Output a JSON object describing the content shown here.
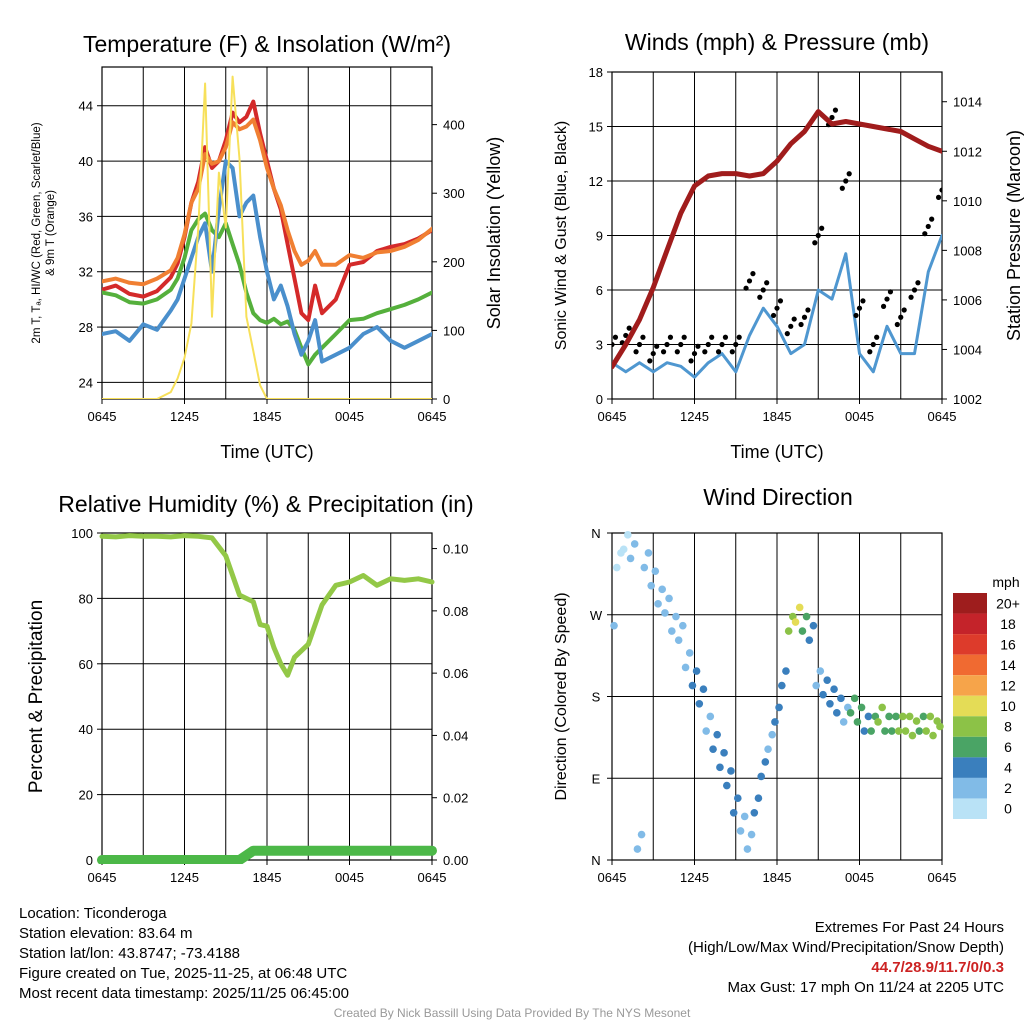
{
  "colors": {
    "temp": "#d42a2a",
    "dewpoint": "#55b03c",
    "hiwc": "#4a8fcc",
    "temp9m": "#f07f32",
    "insolation": "#f7e05a",
    "wind": "#4f97d0",
    "gust": "#000000",
    "pressure": "#a01c1c",
    "rh": "#93c847",
    "precip": "#4cb848"
  },
  "chart_data": [
    {
      "type": "line",
      "id": "temperature",
      "title": "Temperature (F) & Insolation (W/m²)",
      "xlabel": "Time (UTC)",
      "ylabel_lines": [
        "2m T, Tₐ, HI/WC (Red, Green, Scarlet/Blue)",
        "& 9m T (Orange)"
      ],
      "y2label": "Solar Insolation (Yellow)",
      "xticks": [
        "0645",
        "1245",
        "1845",
        "0045",
        "0645"
      ],
      "ylim": [
        22.8,
        46.8
      ],
      "yticks": [
        24,
        28,
        32,
        36,
        40,
        44
      ],
      "y2lim": [
        0,
        484
      ],
      "y2ticks": [
        0,
        100,
        200,
        300,
        400
      ],
      "hours": [
        0,
        1,
        2,
        3,
        4,
        5,
        5.5,
        6,
        6.5,
        7,
        7.5,
        8,
        8.5,
        9,
        9.5,
        10,
        10.5,
        11,
        11.5,
        12,
        12.5,
        13,
        13.5,
        14,
        14.5,
        15,
        15.5,
        16,
        17,
        18,
        19,
        20,
        21,
        22,
        23,
        24
      ],
      "series": [
        {
          "name": "2m Temperature",
          "color_key": "temp",
          "values": [
            30.7,
            31.0,
            30.4,
            30.2,
            30.6,
            31.6,
            32.6,
            34.5,
            37.0,
            38.5,
            41.0,
            39.5,
            40.0,
            41.5,
            43.5,
            42.8,
            43.2,
            44.3,
            42.0,
            40.0,
            38.0,
            36.5,
            34.0,
            31.5,
            29.0,
            28.5,
            31.0,
            29.0,
            30.0,
            32.5,
            32.7,
            33.5,
            33.8,
            34.0,
            34.4,
            35.0
          ]
        },
        {
          "name": "9m Temperature",
          "color_key": "temp9m",
          "values": [
            31.3,
            31.5,
            31.2,
            31.1,
            31.5,
            32.1,
            33.0,
            34.7,
            37.0,
            38.0,
            40.5,
            39.8,
            40.0,
            41.0,
            42.8,
            42.3,
            42.5,
            43.0,
            41.5,
            39.5,
            38.0,
            36.8,
            35.0,
            33.5,
            32.5,
            32.8,
            33.5,
            32.5,
            32.5,
            33.2,
            33.0,
            33.4,
            33.5,
            33.8,
            34.3,
            35.1
          ]
        },
        {
          "name": "2m Dewpoint",
          "color_key": "dewpoint",
          "values": [
            30.5,
            30.3,
            29.8,
            29.7,
            30.0,
            30.7,
            31.5,
            33.0,
            35.0,
            35.8,
            36.2,
            35.0,
            34.5,
            35.5,
            34.0,
            32.5,
            30.5,
            29.0,
            28.5,
            28.3,
            28.6,
            28.2,
            28.4,
            27.8,
            26.5,
            25.3,
            26.0,
            26.5,
            27.5,
            28.5,
            28.6,
            29.0,
            29.3,
            29.6,
            30.0,
            30.5
          ]
        },
        {
          "name": "Heat Index / Wind Chill",
          "color_key": "hiwc",
          "values": [
            27.5,
            27.7,
            27.0,
            28.2,
            27.8,
            29.2,
            30.0,
            31.5,
            33.0,
            34.5,
            35.5,
            32.0,
            36.5,
            40.0,
            39.5,
            36.0,
            37.0,
            37.5,
            34.5,
            32.0,
            30.0,
            31.0,
            29.5,
            27.5,
            26.0,
            27.0,
            28.5,
            25.5,
            26.0,
            26.5,
            27.5,
            28.0,
            27.0,
            26.5,
            27.0,
            27.5
          ]
        },
        {
          "name": "Solar Insolation",
          "color_key": "insolation",
          "axis": "y2",
          "values": [
            0,
            0,
            0,
            0,
            0,
            10,
            30,
            60,
            110,
            250,
            460,
            120,
            330,
            250,
            470,
            350,
            120,
            70,
            20,
            0,
            0,
            0,
            0,
            0,
            0,
            0,
            0,
            0,
            0,
            0,
            0,
            0,
            0,
            0,
            0,
            0
          ]
        }
      ]
    },
    {
      "type": "line",
      "id": "winds",
      "title": "Winds (mph) & Pressure (mb)",
      "xlabel": "Time (UTC)",
      "ylabel": "Sonic Wind & Gust (Blue, Black)",
      "y2label": "Station Pressure (Maroon)",
      "xticks": [
        "0645",
        "1245",
        "1845",
        "0045",
        "0645"
      ],
      "ylim": [
        0,
        18
      ],
      "yticks": [
        0,
        3,
        6,
        9,
        12,
        15,
        18
      ],
      "y2lim": [
        1002,
        1015.2
      ],
      "y2ticks": [
        1002,
        1004,
        1006,
        1008,
        1010,
        1012,
        1014
      ],
      "hours": [
        0,
        1,
        2,
        3,
        4,
        5,
        6,
        7,
        8,
        9,
        10,
        11,
        12,
        13,
        14,
        15,
        16,
        17,
        18,
        19,
        20,
        21,
        22,
        23,
        24
      ],
      "series": [
        {
          "name": "Sonic Wind",
          "color_key": "wind",
          "values": [
            2.0,
            1.5,
            2.0,
            1.5,
            2.0,
            1.8,
            1.2,
            2.0,
            2.5,
            1.5,
            3.5,
            5.0,
            4.0,
            2.5,
            3.0,
            6.0,
            5.5,
            8.0,
            2.5,
            1.5,
            4.0,
            2.5,
            2.5,
            7.0,
            9.0
          ]
        },
        {
          "name": "Gust",
          "color_key": "gust",
          "style": "points",
          "values": [
            3.0,
            3.5,
            3.0,
            2.5,
            3.0,
            3.0,
            2.5,
            3.0,
            3.0,
            3.0,
            6.5,
            6.0,
            5.0,
            4.0,
            4.5,
            9.0,
            15.5,
            12.0,
            5.0,
            3.0,
            5.5,
            4.5,
            6.0,
            9.5,
            11.5
          ]
        },
        {
          "name": "Station Pressure",
          "color_key": "pressure",
          "axis": "y2",
          "values": [
            1003.3,
            1004.2,
            1005.2,
            1006.5,
            1008.0,
            1009.5,
            1010.6,
            1011.0,
            1011.1,
            1011.1,
            1011.0,
            1011.1,
            1011.6,
            1012.3,
            1012.8,
            1013.6,
            1013.1,
            1013.2,
            1013.1,
            1013.0,
            1012.9,
            1012.8,
            1012.5,
            1012.2,
            1012.0
          ]
        }
      ]
    },
    {
      "type": "line",
      "id": "humidity",
      "title": "Relative Humidity (%) & Precipitation (in)",
      "ylabel": "Percent & Precipitation",
      "xticks": [
        "0645",
        "1245",
        "1845",
        "0045",
        "0645"
      ],
      "ylim": [
        0,
        100
      ],
      "yticks": [
        0,
        20,
        40,
        60,
        80,
        100
      ],
      "y2lim": [
        0,
        0.105
      ],
      "y2ticks": [
        "0.00",
        "0.02",
        "0.04",
        "0.06",
        "0.08",
        "0.10"
      ],
      "hours": [
        0,
        1,
        2,
        3,
        4,
        5,
        6,
        7,
        8,
        9,
        10,
        11,
        11.5,
        12,
        12.5,
        13,
        13.5,
        14,
        15,
        16,
        17,
        18,
        19,
        20,
        21,
        22,
        23,
        24
      ],
      "series": [
        {
          "name": "Relative Humidity",
          "color_key": "rh",
          "values": [
            99.0,
            98.8,
            99.2,
            99.0,
            99.0,
            98.8,
            99.2,
            99.0,
            98.5,
            93.0,
            81.0,
            79.0,
            72.0,
            71.5,
            65.0,
            60.0,
            56.5,
            62.0,
            66.0,
            78.0,
            84.0,
            85.0,
            87.0,
            84.0,
            86.0,
            85.5,
            86.0,
            85.0
          ]
        },
        {
          "name": "Precipitation",
          "color_key": "precip",
          "axis": "y2",
          "values": [
            0,
            0,
            0,
            0,
            0,
            0,
            0,
            0,
            0,
            0,
            0,
            0.003,
            0.003,
            0.003,
            0.003,
            0.003,
            0.003,
            0.003,
            0.003,
            0.003,
            0.003,
            0.003,
            0.003,
            0.003,
            0.003,
            0.003,
            0.003,
            0.003
          ]
        }
      ]
    },
    {
      "type": "scatter",
      "id": "direction",
      "title": "Wind Direction",
      "ylabel": "Direction (Colored By Speed)",
      "xticks": [
        "0645",
        "1245",
        "1845",
        "0045",
        "0645"
      ],
      "yticks": [
        "N",
        "E",
        "S",
        "W",
        "N"
      ],
      "ylim": [
        0,
        360
      ],
      "hours": [
        0,
        0.5,
        1,
        1.5,
        2,
        2.5,
        3,
        3.5,
        4,
        4.5,
        5,
        5.5,
        6,
        6.5,
        7,
        7.5,
        8,
        8.5,
        9,
        9.5,
        10,
        10.5,
        11,
        11.5,
        12,
        12.5,
        13,
        13.5,
        14,
        14.5,
        15,
        15.5,
        16,
        16.5,
        17,
        17.5,
        18,
        18.5,
        19,
        19.5,
        20,
        20.5,
        21,
        21.5,
        22,
        22.5,
        23,
        23.5,
        24
      ],
      "direction_deg": [
        250,
        330,
        350,
        340,
        20,
        330,
        310,
        290,
        280,
        260,
        250,
        220,
        200,
        180,
        150,
        130,
        110,
        90,
        60,
        40,
        20,
        60,
        100,
        130,
        160,
        200,
        260,
        270,
        260,
        250,
        200,
        190,
        180,
        170,
        160,
        170,
        160,
        150,
        150,
        160,
        150,
        150,
        150,
        150,
        145,
        150,
        150,
        145,
        155
      ],
      "speed_mph": [
        2,
        1,
        1,
        2,
        3,
        2,
        3,
        2,
        3,
        2,
        2,
        3,
        4,
        4,
        3,
        4,
        4,
        5,
        4,
        3,
        3,
        4,
        4,
        3,
        4,
        5,
        9,
        11,
        7,
        5,
        3,
        4,
        5,
        4,
        3,
        6,
        6,
        5,
        7,
        8,
        7,
        6,
        8,
        9,
        8,
        7,
        9,
        8,
        8
      ],
      "colorbar": {
        "label": "mph",
        "ticks": [
          "20+",
          "18",
          "16",
          "14",
          "12",
          "10",
          "8",
          "6",
          "4",
          "2",
          "0"
        ],
        "colors": [
          "#9e1d1d",
          "#c4232a",
          "#dd3b2b",
          "#f06a31",
          "#f6a44a",
          "#e4dc56",
          "#8cc247",
          "#4aa465",
          "#3a7fbd",
          "#81bbe7",
          "#b9e2f6"
        ]
      }
    }
  ],
  "info": {
    "location": "Location: Ticonderoga",
    "elevation": "Station elevation: 83.64 m",
    "latlon": "Station lat/lon: 43.8747; -73.4188",
    "created": "Figure created on Tue, 2025-11-25, at 06:48 UTC",
    "recent": "Most recent data timestamp: 2025/11/25 06:45:00"
  },
  "extremes": {
    "title": "Extremes For Past 24 Hours",
    "subtitle": "(High/Low/Max Wind/Precipitation/Snow Depth)",
    "values": "44.7/28.9/11.7/0/0.3",
    "gust": "Max Gust: 17 mph On 11/24 at 2205 UTC"
  },
  "credit": "Created By Nick Bassill Using Data Provided By The NYS Mesonet"
}
